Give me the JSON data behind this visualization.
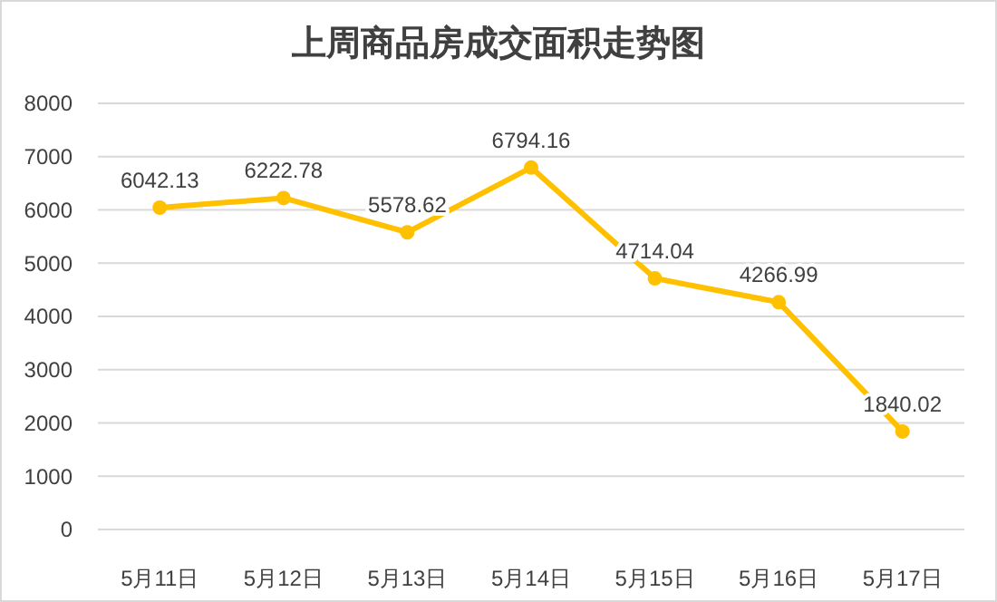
{
  "chart_data": {
    "type": "line",
    "title": "上周商品房成交面积走势图",
    "categories": [
      "5月11日",
      "5月12日",
      "5月13日",
      "5月14日",
      "5月15日",
      "5月16日",
      "5月17日"
    ],
    "series": [
      {
        "color": "#ffc000",
        "values": [
          6042.13,
          6222.78,
          5578.62,
          6794.16,
          4714.04,
          4266.99,
          1840.02
        ]
      }
    ],
    "ylim": [
      0,
      8000
    ],
    "yticks": [
      0,
      1000,
      2000,
      3000,
      4000,
      5000,
      6000,
      7000,
      8000
    ],
    "grid": "y",
    "marker": "circle",
    "data_labels": true
  }
}
